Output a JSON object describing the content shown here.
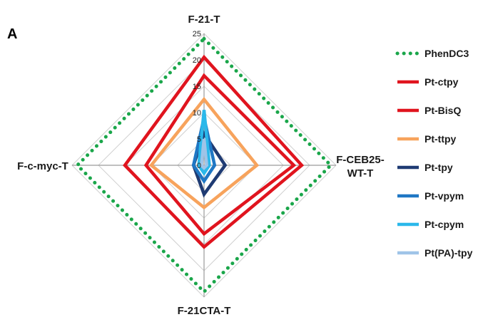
{
  "panel_label": "A",
  "colors": {
    "grid": "#d0d0d0",
    "axis": "#9a9a9a"
  },
  "chart_data": {
    "type": "radar",
    "axes": [
      "F-21-T",
      "F-CEB25-WT-T",
      "F-21CTA-T",
      "F-c-myc-T"
    ],
    "axis_label_lines": [
      [
        "F-21-T"
      ],
      [
        "F-CEB25-",
        "WT-T"
      ],
      [
        "F-21CTA-T"
      ],
      [
        "F-c-myc-T"
      ]
    ],
    "rlim": [
      0,
      25
    ],
    "ticks": [
      0,
      5,
      10,
      15,
      20,
      25
    ],
    "grid": true,
    "legend_position": "right",
    "series": [
      {
        "name": "PhenDC3",
        "color": "#1aa64a",
        "style": "dotted",
        "values": [
          24,
          24,
          24,
          24
        ]
      },
      {
        "name": "Pt-ctpy",
        "color": "#e0141e",
        "style": "solid",
        "values": [
          20.5,
          18.5,
          15.5,
          15
        ]
      },
      {
        "name": "Pt-BisQ",
        "color": "#e0141e",
        "style": "solid",
        "values": [
          17,
          17,
          13,
          11
        ]
      },
      {
        "name": "Pt-ttpy",
        "color": "#f7a35c",
        "style": "solid",
        "values": [
          12.5,
          10,
          8,
          10
        ]
      },
      {
        "name": "Pt-tpy",
        "color": "#1f3b73",
        "style": "solid",
        "values": [
          6,
          4,
          5.5,
          2
        ]
      },
      {
        "name": "Pt-vpym",
        "color": "#1f77c4",
        "style": "solid",
        "values": [
          9,
          2,
          3,
          2
        ]
      },
      {
        "name": "Pt-cpym",
        "color": "#2bb8ea",
        "style": "solid",
        "values": [
          10.5,
          1,
          1.5,
          1
        ]
      },
      {
        "name": "Pt(PA)-tpy",
        "color": "#9fc4e8",
        "style": "solid",
        "values": [
          5,
          0.5,
          0.5,
          0.5
        ]
      }
    ]
  }
}
